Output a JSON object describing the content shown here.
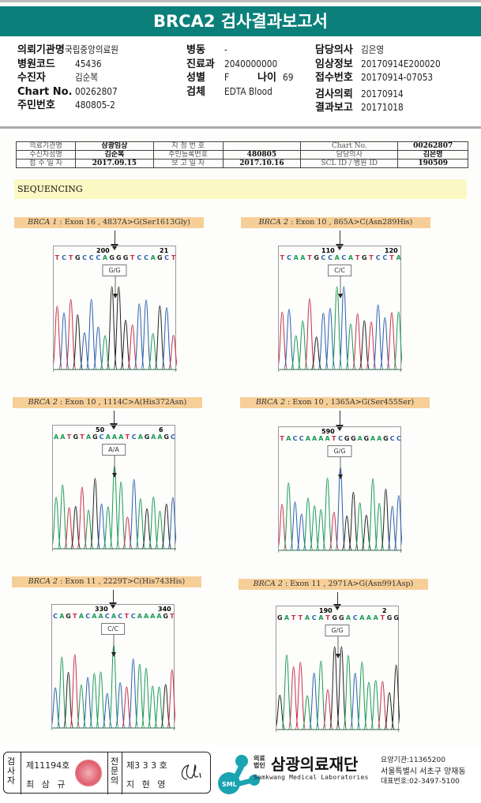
{
  "header": {
    "title": "BRCA2 검사결과보고서"
  },
  "info": {
    "col1": [
      {
        "k": "의뢰기관명",
        "v": "국립중앙의료원"
      },
      {
        "k": "병원코드",
        "v": "45436"
      },
      {
        "k": "수진자",
        "v": "김순복"
      },
      {
        "k": "Chart No.",
        "v": "00262807"
      },
      {
        "k": "주민번호",
        "v": "480805-2"
      }
    ],
    "col2": [
      {
        "k": "병동",
        "v": "-"
      },
      {
        "k": "진료과",
        "v": "2040000000"
      },
      {
        "k": "성별",
        "v": "F",
        "k2": "나이",
        "v2": "69"
      },
      {
        "k": "검체",
        "v": "EDTA Blood"
      }
    ],
    "col3": [
      {
        "k": "담당의사",
        "v": "김은영"
      },
      {
        "k": "임상정보",
        "v": "20170914E200020"
      },
      {
        "k": "접수번호",
        "v": "20170914-07053"
      },
      {
        "k": "검사의뢰",
        "v": "20170914"
      },
      {
        "k": "결과보고",
        "v": "20171018"
      }
    ]
  },
  "report_table": [
    [
      "의료기관명",
      "삼광임상",
      "지 정 번 호",
      "",
      "Chart No.",
      "00262807"
    ],
    [
      "수신자성명",
      "김순복",
      "주민등록번호",
      "480805",
      "담당의사",
      "김은영"
    ],
    [
      "접 수 일 자",
      "2017.09.15",
      "보 고 일 자",
      "2017.10.16",
      "SCL ID / 병원 ID",
      "190509"
    ]
  ],
  "section_title": "SEQUENCING",
  "panels": [
    {
      "gene": "BRCA 1",
      "desc": " : Exon 16 , 4837A>G(Ser1613Gly)",
      "seq": "TCTGCCCAGGGTCCAGCT",
      "pos": [
        "200",
        "21"
      ],
      "genotype": "G/G"
    },
    {
      "gene": "BRCA 2",
      "desc": " : Exon 10 , 865A>C(Asn289His)",
      "seq": "TCAATGCCACATGTCCTA",
      "pos": [
        "110",
        "120"
      ],
      "genotype": "C/C"
    },
    {
      "gene": "BRCA 2",
      "desc": " : Exon 10 , 1114C>A(His372Asn)",
      "seq": "AATGTAGCAAATCAGAAGC",
      "pos": [
        "50",
        "6"
      ],
      "genotype": "A/A"
    },
    {
      "gene": "BRCA 2",
      "desc": " : Exon 10 , 1365A>G(Ser455Ser)",
      "seq": "TACCAAAATCGGAGAAGCC",
      "pos": [
        "590",
        ""
      ],
      "genotype": "G/G"
    },
    {
      "gene": "BRCA 2",
      "desc": " : Exon 11 , 2229T>C(His743His)",
      "seq": "CAGTACAACACTCAAAAGT",
      "pos": [
        "330",
        "340"
      ],
      "genotype": "C/C"
    },
    {
      "gene": "BRCA 2",
      "desc": " : Exon 11 , 2971A>G(Asn991Asp)",
      "seq": "GATTACATGGACAAATGG",
      "pos": [
        "190",
        "2"
      ],
      "genotype": "G/G"
    }
  ],
  "base_colors": {
    "A": "#1a9a55",
    "C": "#2b5fb0",
    "G": "#222222",
    "T": "#c8304a"
  },
  "footer": {
    "examiner_label": "검사자",
    "examiner_no": "제11194호",
    "examiner_name": "최 삼 규",
    "specialist_label": "전문의",
    "specialist_no": "제3 3 3 호",
    "specialist_name": "지 현 영",
    "logo_badge": "SML",
    "corp_type": "의료법인",
    "org_name": "삼광의료재단",
    "org_en": "Samkwang Medical Laboratories",
    "code": "요양기관:11365200",
    "address": "서울특별시 서초구 양재동",
    "phone": "대표번호:02-3497-5100"
  }
}
